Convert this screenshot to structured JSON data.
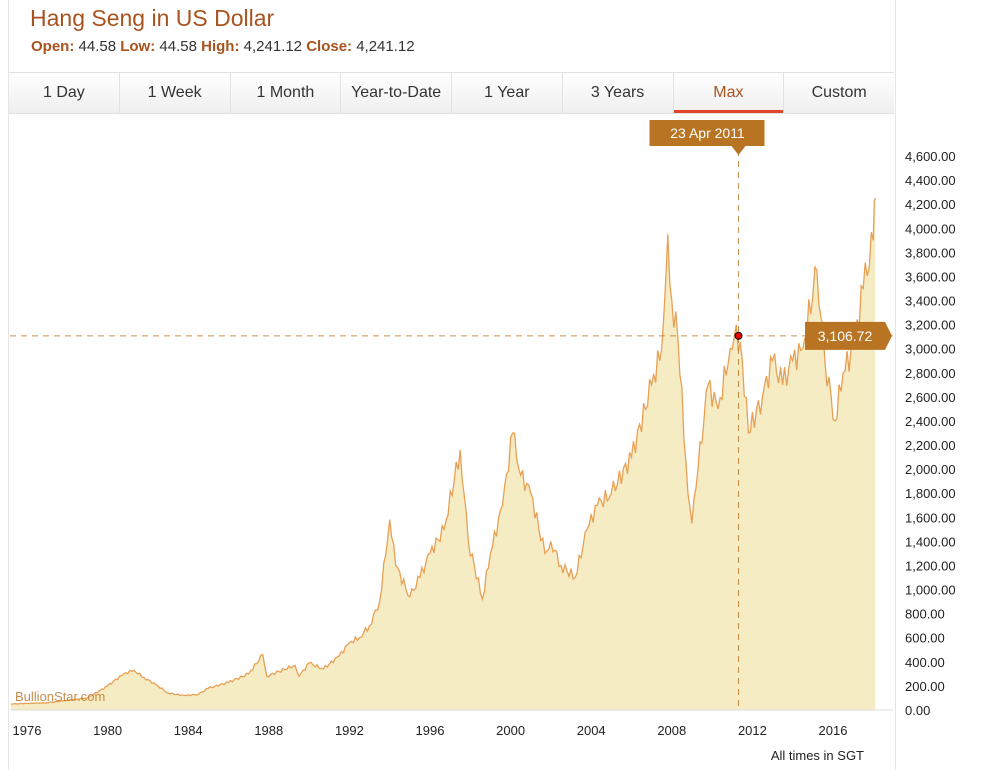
{
  "header": {
    "title": "Hang Seng in US Dollar",
    "open_label": "Open:",
    "open": "44.58",
    "low_label": "Low:",
    "low": "44.58",
    "high_label": "High:",
    "high": "4,241.12",
    "close_label": "Close:",
    "close": "4,241.12"
  },
  "tabs": [
    {
      "label": "1 Day"
    },
    {
      "label": "1 Week"
    },
    {
      "label": "1 Month"
    },
    {
      "label": "Year-to-Date"
    },
    {
      "label": "1 Year"
    },
    {
      "label": "3 Years"
    },
    {
      "label": "Max",
      "active": true
    },
    {
      "label": "Custom"
    }
  ],
  "watermark": "BullionStar.com",
  "footer": "All times in SGT",
  "crosshair": {
    "date": "23 Apr 2011",
    "value": "3,106.72"
  },
  "colors": {
    "line": "#e8a055",
    "fill": "#f5ecc4",
    "accent": "#b87423",
    "tab_active": "#e0452c"
  },
  "chart_data": {
    "type": "area",
    "xlabel": "",
    "ylabel": "",
    "ylim": [
      0,
      4600
    ],
    "xlim": [
      1975.2,
      2018.2
    ],
    "y_ticks": [
      "0.00",
      "200.00",
      "400.00",
      "600.00",
      "800.00",
      "1,000.00",
      "1,200.00",
      "1,400.00",
      "1,600.00",
      "1,800.00",
      "2,000.00",
      "2,200.00",
      "2,400.00",
      "2,600.00",
      "2,800.00",
      "3,000.00",
      "3,200.00",
      "3,400.00",
      "3,600.00",
      "3,800.00",
      "4,000.00",
      "4,200.00",
      "4,400.00",
      "4,600.00"
    ],
    "x_ticks": [
      "1976",
      "1980",
      "1984",
      "1988",
      "1992",
      "1996",
      "2000",
      "2004",
      "2008",
      "2012",
      "2016"
    ],
    "x": [
      1975.2,
      1977,
      1978,
      1979,
      1980,
      1980.8,
      1981.3,
      1981.8,
      1982.5,
      1983,
      1983.8,
      1984.5,
      1985,
      1986,
      1987,
      1987.7,
      1987.9,
      1988.5,
      1989.3,
      1989.5,
      1990,
      1990.7,
      1991.5,
      1992,
      1992.5,
      1993,
      1993.5,
      1994,
      1994.3,
      1995,
      1995.5,
      1996,
      1996.7,
      1997.5,
      1997.9,
      1998.6,
      1999,
      1999.6,
      2000.1,
      2000.5,
      2001,
      2001.7,
      2002,
      2002.5,
      2003.2,
      2003.8,
      2004.3,
      2005,
      2006,
      2007,
      2007.5,
      2007.8,
      2008,
      2008.3,
      2008.8,
      2009,
      2009.3,
      2009.8,
      2010.3,
      2010.9,
      2011.2,
      2011.5,
      2011.8,
      2012.5,
      2013,
      2013.5,
      2014,
      2014.5,
      2015.2,
      2015.6,
      2016.1,
      2016.5,
      2017,
      2017.5,
      2018,
      2018.1
    ],
    "y": [
      50,
      60,
      80,
      100,
      200,
      300,
      330,
      270,
      200,
      140,
      120,
      130,
      180,
      230,
      300,
      460,
      280,
      320,
      370,
      280,
      390,
      340,
      450,
      560,
      600,
      700,
      900,
      1580,
      1200,
      940,
      1100,
      1300,
      1500,
      2160,
      1400,
      920,
      1300,
      1700,
      2300,
      1950,
      1800,
      1300,
      1400,
      1200,
      1100,
      1500,
      1700,
      1800,
      2100,
      2700,
      3000,
      3950,
      3400,
      3100,
      1800,
      1550,
      2000,
      2700,
      2500,
      3000,
      3200,
      2900,
      2300,
      2600,
      2900,
      2700,
      2900,
      3000,
      3650,
      2900,
      2400,
      2800,
      3000,
      3500,
      3900,
      4250
    ]
  }
}
